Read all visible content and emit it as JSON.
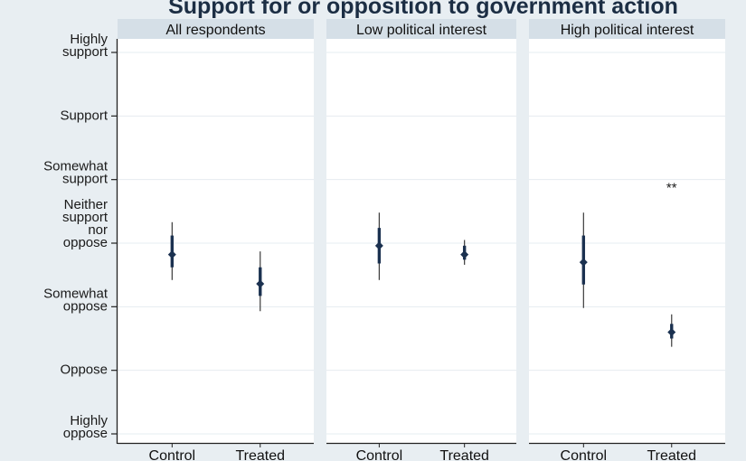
{
  "chart_data": {
    "type": "scatter",
    "title": "Support for or opposition to government action",
    "y_scale": "ordinal 1-7",
    "ylim": [
      1,
      7.2
    ],
    "y_ticks": [
      {
        "value": 7,
        "label": [
          "Highly",
          "support"
        ]
      },
      {
        "value": 6,
        "label": [
          "Support"
        ]
      },
      {
        "value": 5,
        "label": [
          "Somewhat",
          "support"
        ]
      },
      {
        "value": 4,
        "label": [
          "Neither",
          "support",
          "nor",
          "oppose"
        ]
      },
      {
        "value": 3,
        "label": [
          "Somewhat",
          "oppose"
        ]
      },
      {
        "value": 2,
        "label": [
          "Oppose"
        ]
      },
      {
        "value": 1,
        "label": [
          "Highly",
          "oppose"
        ]
      }
    ],
    "categories": [
      "Control",
      "Treated"
    ],
    "panels": [
      {
        "title": "All respondents",
        "points": [
          {
            "group": "Control",
            "estimate": 3.82,
            "ci95": [
              3.42,
              4.33
            ],
            "ci90": [
              3.62,
              4.12
            ]
          },
          {
            "group": "Treated",
            "estimate": 3.36,
            "ci95": [
              2.93,
              3.87
            ],
            "ci90": [
              3.17,
              3.62
            ]
          }
        ],
        "annotations": []
      },
      {
        "title": "Low political interest",
        "points": [
          {
            "group": "Control",
            "estimate": 3.96,
            "ci95": [
              3.42,
              4.48
            ],
            "ci90": [
              3.68,
              4.24
            ]
          },
          {
            "group": "Treated",
            "estimate": 3.82,
            "ci95": [
              3.66,
              4.05
            ],
            "ci90": [
              3.74,
              3.96
            ]
          }
        ],
        "annotations": []
      },
      {
        "title": "High political interest",
        "points": [
          {
            "group": "Control",
            "estimate": 3.7,
            "ci95": [
              2.98,
              4.48
            ],
            "ci90": [
              3.35,
              4.12
            ]
          },
          {
            "group": "Treated",
            "estimate": 2.6,
            "ci95": [
              2.37,
              2.88
            ],
            "ci90": [
              2.5,
              2.73
            ]
          }
        ],
        "annotations": [
          {
            "text": "**",
            "group": "Treated",
            "y": 4.93
          }
        ]
      }
    ],
    "colors": {
      "background": "#e8eef2",
      "plot": "#ffffff",
      "strip": "#d5dfe7",
      "grid": "#e6ecf0",
      "marker": "#1b3150",
      "ci": "#3a3a3a",
      "title": "#1c2e44"
    },
    "grid": true
  }
}
